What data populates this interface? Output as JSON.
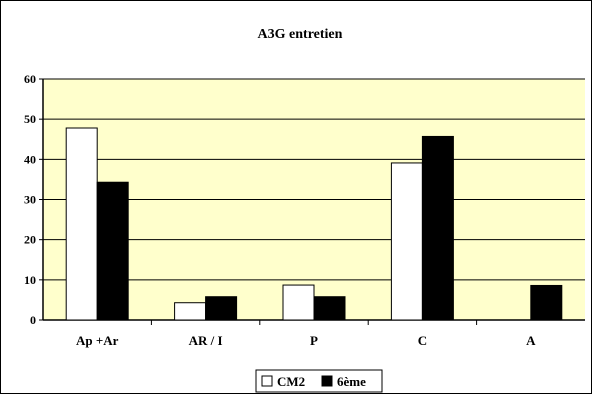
{
  "chart_data": {
    "type": "bar",
    "title": "A3G entretien",
    "categories": [
      "Ap +Ar",
      "AR / I",
      "P",
      "C",
      "A"
    ],
    "series": [
      {
        "name": "CM2",
        "values": [
          47.8,
          4.3,
          8.7,
          39.1,
          0
        ],
        "color": "#ffffff"
      },
      {
        "name": "6ème",
        "values": [
          34.3,
          5.8,
          5.8,
          45.7,
          8.6
        ],
        "color": "#000000"
      }
    ],
    "ylim": [
      0,
      60
    ],
    "yticks": [
      "0",
      "10",
      "20",
      "30",
      "40",
      "50",
      "60"
    ],
    "xlabel": "",
    "ylabel": "",
    "grid": true,
    "legend_position": "bottom",
    "plot_background": "#ffffcc"
  }
}
